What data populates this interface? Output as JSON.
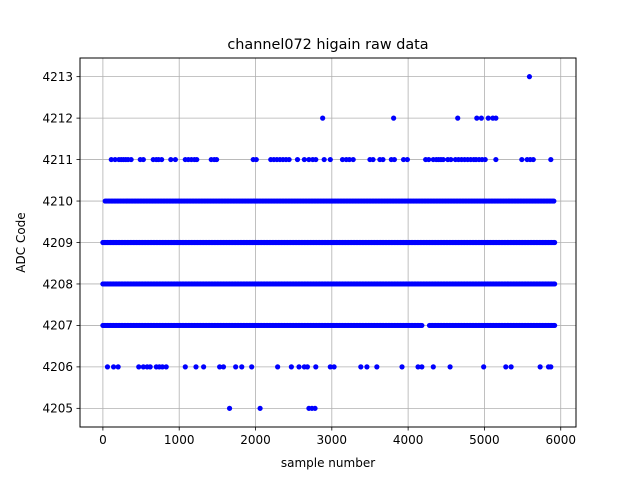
{
  "chart_data": {
    "type": "scatter",
    "title": "channel072 higain raw data",
    "xlabel": "sample number",
    "ylabel": "ADC Code",
    "xlim": [
      -300,
      6200
    ],
    "ylim": [
      4204.55,
      4213.45
    ],
    "x_ticks": [
      0,
      1000,
      2000,
      3000,
      4000,
      5000,
      6000
    ],
    "x_tick_labels": [
      "0",
      "1000",
      "2000",
      "3000",
      "4000",
      "5000",
      "6000"
    ],
    "y_ticks": [
      4205,
      4206,
      4207,
      4208,
      4209,
      4210,
      4211,
      4212,
      4213
    ],
    "y_tick_labels": [
      "4205",
      "4206",
      "4207",
      "4208",
      "4209",
      "4210",
      "4211",
      "4212",
      "4213"
    ],
    "grid": true,
    "marker_color": "#0000ff",
    "series": [
      {
        "name": "",
        "dense_levels": [
          {
            "y": 4207,
            "x_range": [
              0,
              5920
            ],
            "gaps": [
              [
                4200,
                4270
              ]
            ]
          },
          {
            "y": 4208,
            "x_range": [
              0,
              5920
            ],
            "gaps": []
          },
          {
            "y": 4209,
            "x_range": [
              0,
              5920
            ],
            "gaps": []
          },
          {
            "y": 4210,
            "x_range": [
              30,
              5920
            ],
            "gaps": []
          }
        ],
        "points": [
          {
            "x": 5590,
            "y": 4213
          },
          {
            "x": 2880,
            "y": 4212
          },
          {
            "x": 3810,
            "y": 4212
          },
          {
            "x": 4650,
            "y": 4212
          },
          {
            "x": 4900,
            "y": 4212
          },
          {
            "x": 4960,
            "y": 4212
          },
          {
            "x": 5050,
            "y": 4212
          },
          {
            "x": 5110,
            "y": 4212
          },
          {
            "x": 5150,
            "y": 4212
          },
          {
            "x": 110,
            "y": 4211
          },
          {
            "x": 160,
            "y": 4211
          },
          {
            "x": 210,
            "y": 4211
          },
          {
            "x": 240,
            "y": 4211
          },
          {
            "x": 270,
            "y": 4211
          },
          {
            "x": 300,
            "y": 4211
          },
          {
            "x": 330,
            "y": 4211
          },
          {
            "x": 370,
            "y": 4211
          },
          {
            "x": 490,
            "y": 4211
          },
          {
            "x": 530,
            "y": 4211
          },
          {
            "x": 660,
            "y": 4211
          },
          {
            "x": 700,
            "y": 4211
          },
          {
            "x": 730,
            "y": 4211
          },
          {
            "x": 770,
            "y": 4211
          },
          {
            "x": 890,
            "y": 4211
          },
          {
            "x": 950,
            "y": 4211
          },
          {
            "x": 1080,
            "y": 4211
          },
          {
            "x": 1120,
            "y": 4211
          },
          {
            "x": 1160,
            "y": 4211
          },
          {
            "x": 1200,
            "y": 4211
          },
          {
            "x": 1230,
            "y": 4211
          },
          {
            "x": 1420,
            "y": 4211
          },
          {
            "x": 1460,
            "y": 4211
          },
          {
            "x": 1490,
            "y": 4211
          },
          {
            "x": 1970,
            "y": 4211
          },
          {
            "x": 2010,
            "y": 4211
          },
          {
            "x": 2200,
            "y": 4211
          },
          {
            "x": 2240,
            "y": 4211
          },
          {
            "x": 2280,
            "y": 4211
          },
          {
            "x": 2320,
            "y": 4211
          },
          {
            "x": 2360,
            "y": 4211
          },
          {
            "x": 2400,
            "y": 4211
          },
          {
            "x": 2440,
            "y": 4211
          },
          {
            "x": 2550,
            "y": 4211
          },
          {
            "x": 2640,
            "y": 4211
          },
          {
            "x": 2700,
            "y": 4211
          },
          {
            "x": 2750,
            "y": 4211
          },
          {
            "x": 2790,
            "y": 4211
          },
          {
            "x": 2900,
            "y": 4211
          },
          {
            "x": 2980,
            "y": 4211
          },
          {
            "x": 3140,
            "y": 4211
          },
          {
            "x": 3190,
            "y": 4211
          },
          {
            "x": 3230,
            "y": 4211
          },
          {
            "x": 3280,
            "y": 4211
          },
          {
            "x": 3500,
            "y": 4211
          },
          {
            "x": 3540,
            "y": 4211
          },
          {
            "x": 3630,
            "y": 4211
          },
          {
            "x": 3670,
            "y": 4211
          },
          {
            "x": 3780,
            "y": 4211
          },
          {
            "x": 3820,
            "y": 4211
          },
          {
            "x": 3940,
            "y": 4211
          },
          {
            "x": 3990,
            "y": 4211
          },
          {
            "x": 4230,
            "y": 4211
          },
          {
            "x": 4270,
            "y": 4211
          },
          {
            "x": 4330,
            "y": 4211
          },
          {
            "x": 4370,
            "y": 4211
          },
          {
            "x": 4400,
            "y": 4211
          },
          {
            "x": 4430,
            "y": 4211
          },
          {
            "x": 4460,
            "y": 4211
          },
          {
            "x": 4520,
            "y": 4211
          },
          {
            "x": 4560,
            "y": 4211
          },
          {
            "x": 4620,
            "y": 4211
          },
          {
            "x": 4660,
            "y": 4211
          },
          {
            "x": 4700,
            "y": 4211
          },
          {
            "x": 4740,
            "y": 4211
          },
          {
            "x": 4780,
            "y": 4211
          },
          {
            "x": 4820,
            "y": 4211
          },
          {
            "x": 4860,
            "y": 4211
          },
          {
            "x": 4890,
            "y": 4211
          },
          {
            "x": 4930,
            "y": 4211
          },
          {
            "x": 4970,
            "y": 4211
          },
          {
            "x": 5010,
            "y": 4211
          },
          {
            "x": 5150,
            "y": 4211
          },
          {
            "x": 5490,
            "y": 4211
          },
          {
            "x": 5560,
            "y": 4211
          },
          {
            "x": 5600,
            "y": 4211
          },
          {
            "x": 5640,
            "y": 4211
          },
          {
            "x": 5870,
            "y": 4211
          },
          {
            "x": 60,
            "y": 4206
          },
          {
            "x": 140,
            "y": 4206
          },
          {
            "x": 200,
            "y": 4206
          },
          {
            "x": 470,
            "y": 4206
          },
          {
            "x": 530,
            "y": 4206
          },
          {
            "x": 580,
            "y": 4206
          },
          {
            "x": 620,
            "y": 4206
          },
          {
            "x": 700,
            "y": 4206
          },
          {
            "x": 740,
            "y": 4206
          },
          {
            "x": 780,
            "y": 4206
          },
          {
            "x": 830,
            "y": 4206
          },
          {
            "x": 1080,
            "y": 4206
          },
          {
            "x": 1220,
            "y": 4206
          },
          {
            "x": 1320,
            "y": 4206
          },
          {
            "x": 1530,
            "y": 4206
          },
          {
            "x": 1580,
            "y": 4206
          },
          {
            "x": 1740,
            "y": 4206
          },
          {
            "x": 1820,
            "y": 4206
          },
          {
            "x": 1950,
            "y": 4206
          },
          {
            "x": 2290,
            "y": 4206
          },
          {
            "x": 2470,
            "y": 4206
          },
          {
            "x": 2570,
            "y": 4206
          },
          {
            "x": 2640,
            "y": 4206
          },
          {
            "x": 2680,
            "y": 4206
          },
          {
            "x": 2790,
            "y": 4206
          },
          {
            "x": 2980,
            "y": 4206
          },
          {
            "x": 3030,
            "y": 4206
          },
          {
            "x": 3380,
            "y": 4206
          },
          {
            "x": 3460,
            "y": 4206
          },
          {
            "x": 3590,
            "y": 4206
          },
          {
            "x": 3920,
            "y": 4206
          },
          {
            "x": 4130,
            "y": 4206
          },
          {
            "x": 4180,
            "y": 4206
          },
          {
            "x": 4330,
            "y": 4206
          },
          {
            "x": 4550,
            "y": 4206
          },
          {
            "x": 4990,
            "y": 4206
          },
          {
            "x": 5280,
            "y": 4206
          },
          {
            "x": 5350,
            "y": 4206
          },
          {
            "x": 5730,
            "y": 4206
          },
          {
            "x": 5840,
            "y": 4206
          },
          {
            "x": 5870,
            "y": 4206
          },
          {
            "x": 1660,
            "y": 4205
          },
          {
            "x": 2060,
            "y": 4205
          },
          {
            "x": 2700,
            "y": 4205
          },
          {
            "x": 2740,
            "y": 4205
          },
          {
            "x": 2780,
            "y": 4205
          }
        ]
      }
    ]
  }
}
